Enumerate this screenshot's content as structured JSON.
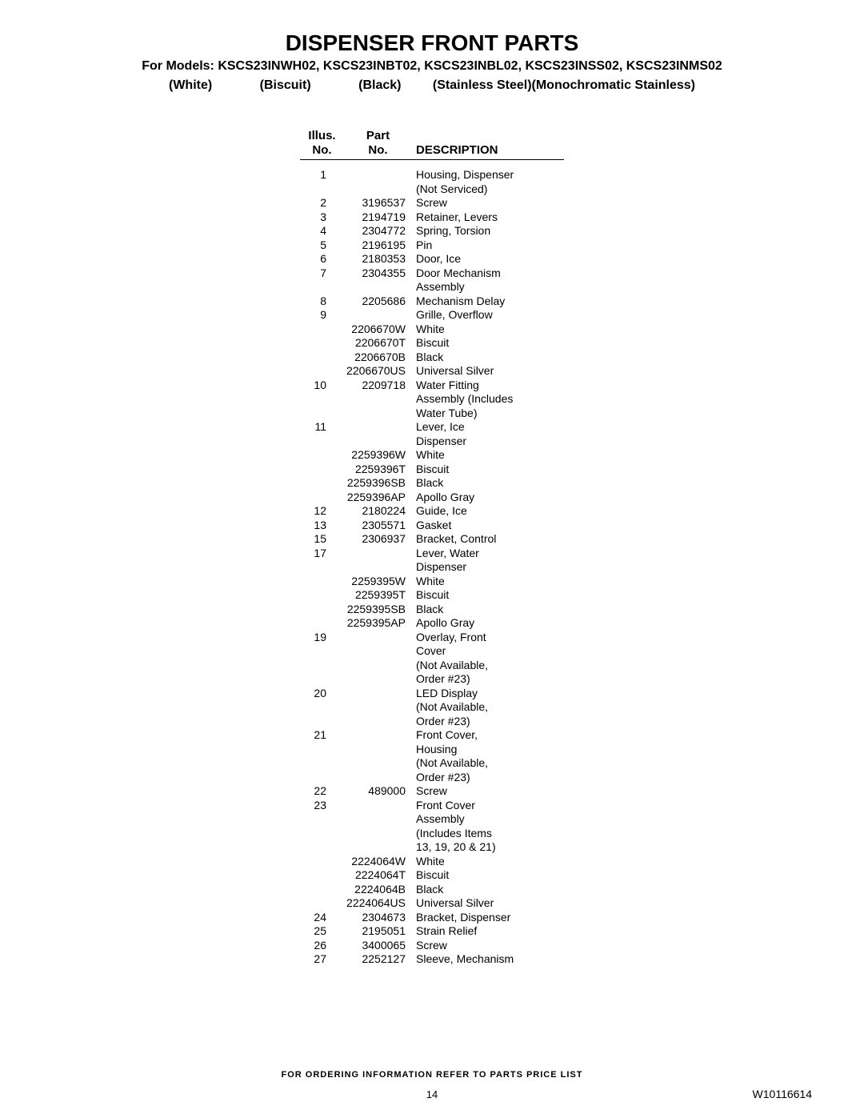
{
  "title": "DISPENSER FRONT PARTS",
  "models_line": "For Models: KSCS23INWH02, KSCS23INBT02, KSCS23INBL02, KSCS23INSS02, KSCS23INMS02",
  "colors": {
    "c1": "(White)",
    "c2": "(Biscuit)",
    "c3": "(Black)",
    "c4": "(Stainless Steel)(Monochromatic Stainless)"
  },
  "header": {
    "illus1": "Illus.",
    "illus2": "No.",
    "part1": "Part",
    "part2": "No.",
    "desc": "DESCRIPTION"
  },
  "rows": [
    {
      "illus": "1",
      "part": "",
      "desc": "Housing, Dispenser"
    },
    {
      "illus": "",
      "part": "",
      "desc": "(Not Serviced)"
    },
    {
      "illus": "2",
      "part": "3196537",
      "desc": "Screw"
    },
    {
      "illus": "3",
      "part": "2194719",
      "desc": "Retainer, Levers"
    },
    {
      "illus": "4",
      "part": "2304772",
      "desc": "Spring, Torsion"
    },
    {
      "illus": "5",
      "part": "2196195",
      "desc": "Pin"
    },
    {
      "illus": "6",
      "part": "2180353",
      "desc": "Door, Ice"
    },
    {
      "illus": "7",
      "part": "2304355",
      "desc": "Door Mechanism"
    },
    {
      "illus": "",
      "part": "",
      "desc": "Assembly"
    },
    {
      "illus": "8",
      "part": "2205686",
      "desc": "Mechanism Delay"
    },
    {
      "illus": "9",
      "part": "",
      "desc": "Grille, Overflow"
    },
    {
      "illus": "",
      "part": "2206670W",
      "desc": "White"
    },
    {
      "illus": "",
      "part": "2206670T",
      "desc": "Biscuit"
    },
    {
      "illus": "",
      "part": "2206670B",
      "desc": "Black"
    },
    {
      "illus": "",
      "part": "2206670US",
      "desc": "Universal Silver"
    },
    {
      "illus": "10",
      "part": "2209718",
      "desc": "Water Fitting"
    },
    {
      "illus": "",
      "part": "",
      "desc": "Assembly (Includes"
    },
    {
      "illus": "",
      "part": "",
      "desc": "Water Tube)"
    },
    {
      "illus": "11",
      "part": "",
      "desc": "Lever, Ice"
    },
    {
      "illus": "",
      "part": "",
      "desc": "Dispenser"
    },
    {
      "illus": "",
      "part": "2259396W",
      "desc": "White"
    },
    {
      "illus": "",
      "part": "2259396T",
      "desc": "Biscuit"
    },
    {
      "illus": "",
      "part": "2259396SB",
      "desc": "Black"
    },
    {
      "illus": "",
      "part": "2259396AP",
      "desc": "Apollo Gray"
    },
    {
      "illus": "12",
      "part": "2180224",
      "desc": "Guide, Ice"
    },
    {
      "illus": "13",
      "part": "2305571",
      "desc": "Gasket"
    },
    {
      "illus": "15",
      "part": "2306937",
      "desc": "Bracket, Control"
    },
    {
      "illus": "17",
      "part": "",
      "desc": "Lever, Water"
    },
    {
      "illus": "",
      "part": "",
      "desc": "Dispenser"
    },
    {
      "illus": "",
      "part": "2259395W",
      "desc": "White"
    },
    {
      "illus": "",
      "part": "2259395T",
      "desc": "Biscuit"
    },
    {
      "illus": "",
      "part": "2259395SB",
      "desc": "Black"
    },
    {
      "illus": "",
      "part": "2259395AP",
      "desc": "Apollo Gray"
    },
    {
      "illus": "19",
      "part": "",
      "desc": "Overlay, Front"
    },
    {
      "illus": "",
      "part": "",
      "desc": "Cover"
    },
    {
      "illus": "",
      "part": "",
      "desc": "(Not Available,"
    },
    {
      "illus": "",
      "part": "",
      "desc": "Order #23)"
    },
    {
      "illus": "20",
      "part": "",
      "desc": "LED Display"
    },
    {
      "illus": "",
      "part": "",
      "desc": "(Not Available,"
    },
    {
      "illus": "",
      "part": "",
      "desc": "Order #23)"
    },
    {
      "illus": "21",
      "part": "",
      "desc": "Front Cover,"
    },
    {
      "illus": "",
      "part": "",
      "desc": "Housing"
    },
    {
      "illus": "",
      "part": "",
      "desc": "(Not Available,"
    },
    {
      "illus": "",
      "part": "",
      "desc": "Order #23)"
    },
    {
      "illus": "22",
      "part": "489000",
      "desc": "Screw"
    },
    {
      "illus": "23",
      "part": "",
      "desc": "Front Cover"
    },
    {
      "illus": "",
      "part": "",
      "desc": "Assembly"
    },
    {
      "illus": "",
      "part": "",
      "desc": "(Includes Items"
    },
    {
      "illus": "",
      "part": "",
      "desc": "13, 19, 20 & 21)"
    },
    {
      "illus": "",
      "part": "2224064W",
      "desc": "White"
    },
    {
      "illus": "",
      "part": "2224064T",
      "desc": "Biscuit"
    },
    {
      "illus": "",
      "part": "2224064B",
      "desc": "Black"
    },
    {
      "illus": "",
      "part": "2224064US",
      "desc": "Universal Silver"
    },
    {
      "illus": "24",
      "part": "2304673",
      "desc": "Bracket, Dispenser"
    },
    {
      "illus": "25",
      "part": "2195051",
      "desc": "Strain Relief"
    },
    {
      "illus": "26",
      "part": "3400065",
      "desc": "Screw"
    },
    {
      "illus": "27",
      "part": "2252127",
      "desc": "Sleeve, Mechanism"
    }
  ],
  "footer": "FOR ORDERING INFORMATION REFER TO PARTS PRICE LIST",
  "page_num": "14",
  "doc_num": "W10116614"
}
